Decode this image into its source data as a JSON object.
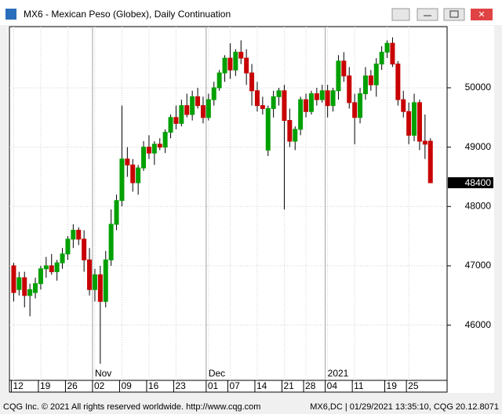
{
  "window": {
    "title": "MX6 - Mexican Peso (Globex), Daily Continuation"
  },
  "footer": {
    "left": "CQG Inc. © 2021 All rights reserved worldwide. http://www.cqg.com",
    "right": "MX6,DC | 01/29/2021 13:35:10, CQG 20.12.8071"
  },
  "chart_data": {
    "type": "candlestick",
    "title": "MX6 - Mexican Peso (Globex), Daily Continuation",
    "categories": [
      "12",
      null,
      null,
      null,
      null,
      "19",
      null,
      null,
      null,
      null,
      "26",
      null,
      null,
      null,
      null,
      "02",
      null,
      null,
      null,
      null,
      "09",
      null,
      null,
      null,
      null,
      "16",
      null,
      null,
      null,
      null,
      "23",
      null,
      null,
      null,
      null,
      null,
      "01",
      null,
      null,
      null,
      "07",
      null,
      null,
      null,
      null,
      "14",
      null,
      null,
      null,
      null,
      "21",
      null,
      null,
      null,
      "28",
      null,
      null,
      null,
      "04",
      null,
      null,
      null,
      null,
      "11",
      null,
      null,
      null,
      null,
      null,
      "19",
      null,
      null,
      null,
      "25",
      null,
      null,
      null,
      null
    ],
    "period_labels": [
      {
        "label": "Nov",
        "category_index": 15
      },
      {
        "label": "Dec",
        "category_index": 36
      },
      {
        "label": "2021",
        "category_index": 58
      }
    ],
    "open": [
      47000,
      46600,
      46800,
      46500,
      46550,
      46700,
      46950,
      47000,
      46900,
      47050,
      47200,
      47450,
      47600,
      47450,
      47100,
      46600,
      46850,
      46400,
      47100,
      47700,
      48100,
      48800,
      48700,
      48400,
      48650,
      49000,
      48900,
      49050,
      49000,
      49250,
      49500,
      49400,
      49700,
      49550,
      49850,
      49700,
      49500,
      49800,
      50000,
      50250,
      50500,
      50300,
      50600,
      50500,
      50250,
      49950,
      49700,
      48950,
      49650,
      49850,
      49950,
      49450,
      49100,
      49300,
      49800,
      49600,
      49900,
      49800,
      49950,
      49700,
      49950,
      50450,
      50200,
      49750,
      49500,
      49900,
      50200,
      50050,
      50400,
      50600,
      50750,
      50400,
      49800,
      49600,
      49200,
      49750,
      49100,
      49100
    ],
    "high": [
      47050,
      46900,
      46900,
      46700,
      46800,
      47000,
      47150,
      47200,
      47100,
      47300,
      47500,
      47700,
      47650,
      47600,
      47300,
      46950,
      47000,
      47250,
      47950,
      48200,
      49700,
      49000,
      48800,
      48700,
      49100,
      49200,
      49100,
      49150,
      49300,
      49550,
      49700,
      49800,
      49900,
      49950,
      50000,
      49850,
      49900,
      50100,
      50300,
      50550,
      50750,
      50650,
      50800,
      50650,
      50400,
      50100,
      49850,
      49700,
      49950,
      50000,
      50050,
      49650,
      49350,
      49850,
      49900,
      49950,
      50000,
      50050,
      50050,
      50000,
      50550,
      50600,
      50350,
      49900,
      50000,
      50350,
      50300,
      50500,
      50700,
      50800,
      50850,
      50450,
      49950,
      49750,
      49900,
      49800,
      49550,
      49150
    ],
    "low": [
      46400,
      46500,
      46300,
      46150,
      46450,
      46600,
      46800,
      46850,
      46750,
      46950,
      47100,
      47300,
      47350,
      46900,
      46500,
      46400,
      45350,
      46300,
      47000,
      47600,
      48000,
      48500,
      48250,
      48200,
      48600,
      48800,
      48700,
      48950,
      48900,
      49150,
      49300,
      49350,
      49500,
      49450,
      49650,
      49400,
      49450,
      49700,
      49950,
      50100,
      50150,
      50200,
      50400,
      50050,
      49700,
      49600,
      49550,
      48850,
      49500,
      49700,
      47950,
      49000,
      48950,
      49200,
      49500,
      49550,
      49700,
      49750,
      49500,
      49600,
      49800,
      50100,
      49650,
      49050,
      49400,
      49800,
      49950,
      49850,
      50300,
      50500,
      50350,
      49700,
      49500,
      49050,
      49100,
      48950,
      48800,
      48400
    ],
    "close": [
      46550,
      46800,
      46500,
      46600,
      46700,
      46950,
      47000,
      46900,
      47050,
      47200,
      47450,
      47600,
      47450,
      47100,
      46600,
      46850,
      46400,
      47100,
      47700,
      48100,
      48800,
      48700,
      48400,
      48650,
      49000,
      48900,
      49050,
      49000,
      49250,
      49500,
      49400,
      49700,
      49550,
      49850,
      49700,
      49500,
      49800,
      50000,
      50250,
      50500,
      50300,
      50600,
      50500,
      50250,
      49950,
      49700,
      49650,
      49650,
      49850,
      49950,
      49450,
      49100,
      49300,
      49800,
      49600,
      49900,
      49800,
      49950,
      49700,
      49950,
      50450,
      50200,
      49750,
      49500,
      49900,
      50200,
      50050,
      50400,
      50600,
      50750,
      50400,
      49800,
      49600,
      49200,
      49750,
      49100,
      49050,
      48400
    ],
    "up_color": "#00a000",
    "down_color": "#c80000",
    "last_price": 48400,
    "ylim": [
      45070,
      51030
    ],
    "yticks": [
      46000,
      47000,
      48000,
      49000,
      50000
    ],
    "grid": true
  }
}
